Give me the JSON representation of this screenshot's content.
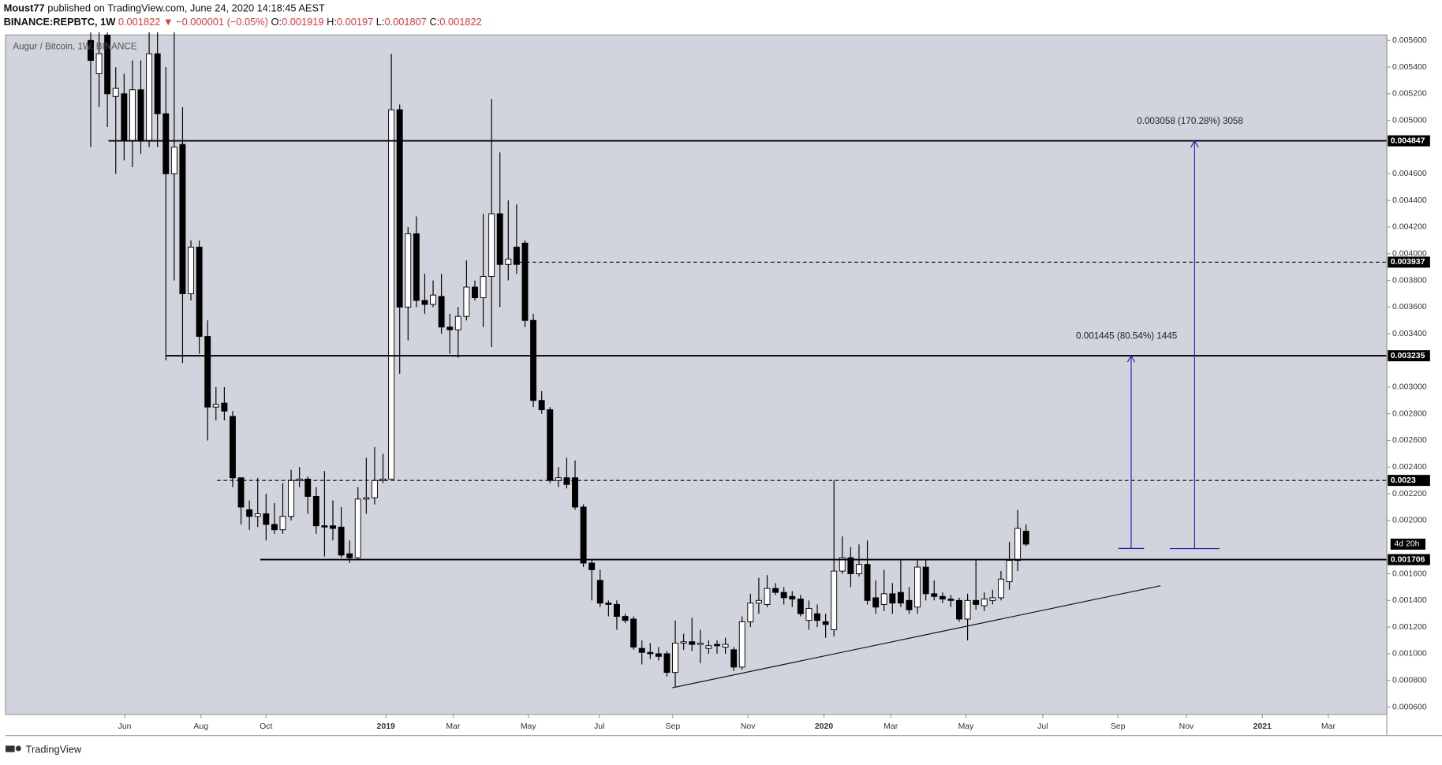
{
  "header": {
    "author": "Moust77",
    "published": "published on TradingView.com, June 24, 2020 14:18:45 AEST",
    "symbol": "BINANCE:REPBTC, 1W",
    "change": "▼ −0.000001 (−0.05%)",
    "ohlc_labels": [
      "O:",
      "H:",
      "L:",
      "C:"
    ]
  },
  "footer": {
    "brand": "TradingView"
  },
  "chart_data": {
    "type": "candlestick",
    "title": "Augur / Bitcoin, 1W, BINANCE",
    "open": [
      0.0056,
      0.00535,
      0.00564,
      0.00518,
      0.0052,
      0.00485,
      0.00523,
      0.00485,
      0.0055,
      0.00505,
      0.0046,
      0.00482,
      0.0037,
      0.00405,
      0.00338,
      0.00285,
      0.00288,
      0.00278,
      0.00232,
      0.00208,
      0.00203,
      0.00205,
      0.00197,
      0.00193,
      0.00203,
      0.0023,
      0.00231,
      0.00218,
      0.00196,
      0.00196,
      0.00195,
      0.00175,
      0.00172,
      0.00216,
      0.00217,
      0.0023,
      0.00231,
      0.00508,
      0.0036,
      0.00415,
      0.00365,
      0.00362,
      0.00368,
      0.00345,
      0.00343,
      0.00353,
      0.00375,
      0.00367,
      0.00383,
      0.0043,
      0.00392,
      0.00405,
      0.00408,
      0.0035,
      0.0029,
      0.00283,
      0.0023,
      0.00232,
      0.00232,
      0.0021,
      0.00168,
      0.00155,
      0.00138,
      0.00137,
      0.00128,
      0.00126,
      0.00104,
      0.00101,
      0.001,
      0.001,
      0.00086,
      0.00108,
      0.00109,
      0.00107,
      0.00104,
      0.00107,
      0.00105,
      0.00103,
      0.0009,
      0.00124,
      0.00138,
      0.00137,
      0.00149,
      0.00146,
      0.00143,
      0.00141,
      0.00125,
      0.0013,
      0.00124,
      0.00118,
      0.00162,
      0.00172,
      0.0016,
      0.00167,
      0.00142,
      0.00137,
      0.00145,
      0.00146,
      0.0014,
      0.00135,
      0.00165,
      0.00145,
      0.00143,
      0.00141,
      0.0014,
      0.00126,
      0.0014,
      0.00136,
      0.0014,
      0.00142,
      0.00154,
      0.0017,
      0.001919
    ],
    "high": [
      0.00566,
      0.00566,
      0.00566,
      0.0054,
      0.00535,
      0.00545,
      0.00545,
      0.00566,
      0.00566,
      0.0054,
      0.00566,
      0.0051,
      0.0041,
      0.0041,
      0.0035,
      0.003,
      0.003,
      0.00282,
      0.00232,
      0.00215,
      0.00232,
      0.0022,
      0.00213,
      0.00228,
      0.00238,
      0.0024,
      0.00233,
      0.00225,
      0.00237,
      0.00215,
      0.0021,
      0.00185,
      0.00225,
      0.00247,
      0.00255,
      0.0025,
      0.0055,
      0.00512,
      0.0042,
      0.00428,
      0.00385,
      0.0038,
      0.00385,
      0.00355,
      0.0036,
      0.00395,
      0.0038,
      0.0043,
      0.00516,
      0.00476,
      0.0044,
      0.00437,
      0.0041,
      0.00355,
      0.00297,
      0.00285,
      0.0024,
      0.00247,
      0.00245,
      0.00212,
      0.0017,
      0.00163,
      0.0014,
      0.0014,
      0.0013,
      0.00128,
      0.0011,
      0.00108,
      0.00105,
      0.00102,
      0.00125,
      0.00115,
      0.00127,
      0.00118,
      0.0011,
      0.0011,
      0.00112,
      0.00105,
      0.00128,
      0.00145,
      0.00157,
      0.00159,
      0.00153,
      0.0015,
      0.00147,
      0.00144,
      0.0014,
      0.00137,
      0.0013,
      0.0023,
      0.00188,
      0.0018,
      0.00182,
      0.00185,
      0.00155,
      0.00163,
      0.00153,
      0.0017,
      0.0015,
      0.0017,
      0.0017,
      0.00155,
      0.00146,
      0.00144,
      0.00142,
      0.00145,
      0.0017,
      0.00146,
      0.00148,
      0.00162,
      0.00184,
      0.00208,
      0.00197
    ],
    "low": [
      0.0048,
      0.0051,
      0.00495,
      0.0046,
      0.0047,
      0.00465,
      0.00475,
      0.0048,
      0.0048,
      0.0032,
      0.0038,
      0.00318,
      0.00365,
      0.00325,
      0.0026,
      0.00275,
      0.00275,
      0.00225,
      0.00197,
      0.00193,
      0.00195,
      0.00185,
      0.0019,
      0.0019,
      0.002,
      0.00225,
      0.00205,
      0.0019,
      0.00173,
      0.00185,
      0.00172,
      0.00168,
      0.0017,
      0.00205,
      0.00212,
      0.00228,
      0.00231,
      0.0031,
      0.00335,
      0.0036,
      0.00355,
      0.0036,
      0.0034,
      0.00325,
      0.00322,
      0.0035,
      0.00365,
      0.00345,
      0.0033,
      0.0036,
      0.0038,
      0.00385,
      0.00345,
      0.00285,
      0.0028,
      0.00228,
      0.00225,
      0.00224,
      0.00208,
      0.00165,
      0.0014,
      0.00135,
      0.00128,
      0.00118,
      0.00123,
      0.00103,
      0.00092,
      0.00096,
      0.00095,
      0.00083,
      0.00075,
      0.00103,
      0.00102,
      0.00093,
      0.001,
      0.001,
      0.001,
      0.00087,
      0.00088,
      0.0012,
      0.0013,
      0.00135,
      0.00144,
      0.00137,
      0.00135,
      0.00128,
      0.00118,
      0.0012,
      0.00112,
      0.00113,
      0.0016,
      0.0015,
      0.00158,
      0.00137,
      0.0013,
      0.00132,
      0.0013,
      0.00135,
      0.0013,
      0.0013,
      0.0014,
      0.0014,
      0.00138,
      0.00135,
      0.00124,
      0.0011,
      0.00133,
      0.00132,
      0.00137,
      0.0014,
      0.00148,
      0.00162,
      0.001807
    ],
    "close": [
      0.00545,
      0.0055,
      0.0052,
      0.00524,
      0.00485,
      0.00523,
      0.00485,
      0.0055,
      0.00505,
      0.0046,
      0.0048,
      0.0037,
      0.00405,
      0.00338,
      0.00285,
      0.00287,
      0.00282,
      0.00232,
      0.0021,
      0.00203,
      0.00205,
      0.00197,
      0.00193,
      0.00203,
      0.0023,
      0.00231,
      0.00218,
      0.00196,
      0.00195,
      0.00194,
      0.00174,
      0.00172,
      0.00216,
      0.00217,
      0.0023,
      0.00231,
      0.00508,
      0.0036,
      0.00415,
      0.00365,
      0.00362,
      0.00369,
      0.00345,
      0.00343,
      0.00353,
      0.00375,
      0.00367,
      0.00383,
      0.0043,
      0.00392,
      0.00396,
      0.00392,
      0.0035,
      0.0029,
      0.00283,
      0.0023,
      0.00232,
      0.00227,
      0.0021,
      0.00168,
      0.00163,
      0.00138,
      0.00137,
      0.00128,
      0.00125,
      0.00105,
      0.00101,
      0.001,
      0.00098,
      0.00086,
      0.00108,
      0.00109,
      0.00107,
      0.00108,
      0.00106,
      0.00106,
      0.00107,
      0.0009,
      0.00124,
      0.00138,
      0.0014,
      0.00149,
      0.00146,
      0.00142,
      0.00141,
      0.0013,
      0.00134,
      0.00125,
      0.00122,
      0.00162,
      0.00172,
      0.0016,
      0.00167,
      0.0014,
      0.00135,
      0.00145,
      0.00138,
      0.00138,
      0.00133,
      0.00165,
      0.00145,
      0.00143,
      0.00141,
      0.0014,
      0.00126,
      0.0014,
      0.00137,
      0.00141,
      0.00142,
      0.00156,
      0.0017,
      0.00194,
      0.001822
    ],
    "up_color": "#ffffff",
    "down_color": "#000000",
    "background": "#d1d4dc",
    "xlim": [
      -10.2,
      155.2
    ],
    "xticks": [
      {
        "value": 4.07,
        "label": "Jun"
      },
      {
        "value": 13.2,
        "label": "Aug"
      },
      {
        "value": 21.0,
        "label": "Oct"
      },
      {
        "value": 35.35,
        "label": "2019"
      },
      {
        "value": 43.4,
        "label": "Mar"
      },
      {
        "value": 52.4,
        "label": "May"
      },
      {
        "value": 60.9,
        "label": "Jul"
      },
      {
        "value": 69.7,
        "label": "Sep"
      },
      {
        "value": 78.7,
        "label": "Nov"
      },
      {
        "value": 87.8,
        "label": "2020"
      },
      {
        "value": 95.8,
        "label": "Mar"
      },
      {
        "value": 104.8,
        "label": "May"
      },
      {
        "value": 114.0,
        "label": "Jul"
      },
      {
        "value": 123.0,
        "label": "Sep"
      },
      {
        "value": 131.2,
        "label": "Nov"
      },
      {
        "value": 140.3,
        "label": "2021"
      },
      {
        "value": 148.2,
        "label": "Mar"
      }
    ],
    "ylim": [
      0.000545,
      0.005641
    ],
    "yticks": [
      {
        "value": 0.0056,
        "label": "0.005600"
      },
      {
        "value": 0.0054,
        "label": "0.005400"
      },
      {
        "value": 0.0052,
        "label": "0.005200"
      },
      {
        "value": 0.005,
        "label": "0.005000"
      },
      {
        "value": 0.0046,
        "label": "0.004600"
      },
      {
        "value": 0.0044,
        "label": "0.004400"
      },
      {
        "value": 0.0042,
        "label": "0.004200"
      },
      {
        "value": 0.004,
        "label": "0.004000"
      },
      {
        "value": 0.0038,
        "label": "0.003800"
      },
      {
        "value": 0.0036,
        "label": "0.003600"
      },
      {
        "value": 0.0034,
        "label": "0.003400"
      },
      {
        "value": 0.003,
        "label": "0.003000"
      },
      {
        "value": 0.0028,
        "label": "0.002800"
      },
      {
        "value": 0.0026,
        "label": "0.002600"
      },
      {
        "value": 0.0024,
        "label": "0.002400"
      },
      {
        "value": 0.0022,
        "label": "0.002200"
      },
      {
        "value": 0.002,
        "label": "0.002000"
      },
      {
        "value": 0.0016,
        "label": "0.001600"
      },
      {
        "value": 0.0014,
        "label": "0.001400"
      },
      {
        "value": 0.0012,
        "label": "0.001200"
      },
      {
        "value": 0.001,
        "label": "0.001000"
      },
      {
        "value": 0.0008,
        "label": "0.000800"
      },
      {
        "value": 0.0006,
        "label": "0.000600"
      }
    ],
    "hlines": [
      {
        "value": 0.004847,
        "dashed": false
      },
      {
        "value": 0.003937,
        "dashed": true
      },
      {
        "value": 0.003235,
        "dashed": false
      },
      {
        "value": 0.0023,
        "dashed": true
      },
      {
        "value": 0.001706,
        "dashed": false
      }
    ],
    "measures": [
      {
        "label": "0.003058 (170.28%) 3058",
        "from": 0.001789,
        "to": 0.004847,
        "color": "#1e22aa"
      },
      {
        "label": "0.001445 (80.54%) 1445",
        "from": 0.00179,
        "to": 0.003235,
        "color": "#1e22aa"
      }
    ],
    "countdown": "4d 20h"
  }
}
